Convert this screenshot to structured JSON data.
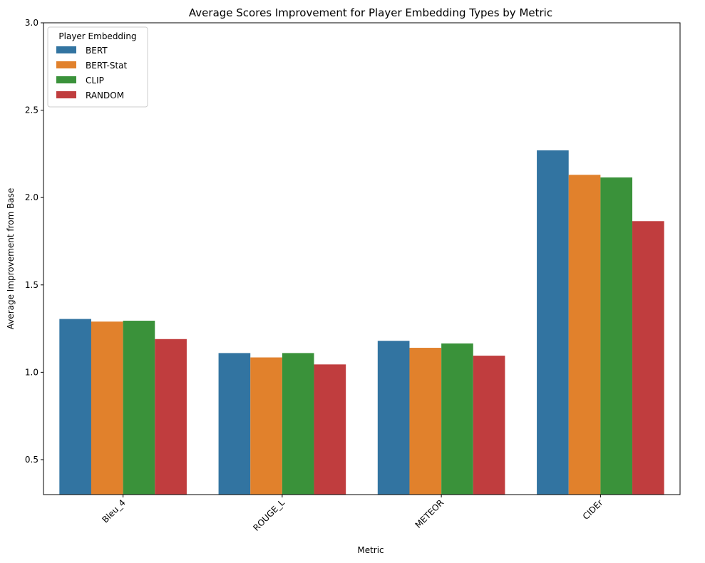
{
  "chart_data": {
    "type": "bar",
    "title": "Average Scores Improvement for Player Embedding Types by Metric",
    "xlabel": "Metric",
    "ylabel": "Average Improvement from Base",
    "categories": [
      "Bleu_4",
      "ROUGE_L",
      "METEOR",
      "CIDEr"
    ],
    "ylim": [
      0.3,
      3.0
    ],
    "yticks": [
      0.5,
      1.0,
      1.5,
      2.0,
      2.5,
      3.0
    ],
    "ytick_labels": [
      "0.5",
      "1.0",
      "1.5",
      "2.0",
      "2.5",
      "3.0"
    ],
    "xtick_rotation": 45,
    "grid": false,
    "legend": {
      "title": "Player Embedding",
      "position": "top-left"
    },
    "series": [
      {
        "name": "BERT",
        "color": "#3274a1",
        "values": [
          1.305,
          1.11,
          1.18,
          2.27
        ]
      },
      {
        "name": "BERT-Stat",
        "color": "#e1812c",
        "values": [
          1.29,
          1.085,
          1.14,
          2.13
        ]
      },
      {
        "name": "CLIP",
        "color": "#3a923a",
        "values": [
          1.295,
          1.11,
          1.165,
          2.115
        ]
      },
      {
        "name": "RANDOM",
        "color": "#c03d3e",
        "values": [
          1.19,
          1.045,
          1.095,
          1.865
        ]
      }
    ]
  }
}
